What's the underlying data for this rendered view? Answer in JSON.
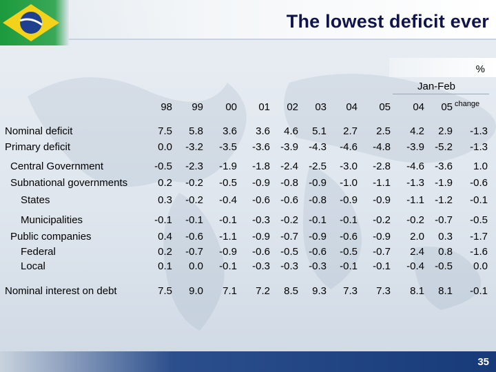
{
  "title": "The lowest deficit ever",
  "unit": "%",
  "period_label": "Jan-Feb",
  "columns": [
    "98",
    "99",
    "00",
    "01",
    "02",
    "03",
    "04",
    "05",
    "04",
    "05"
  ],
  "change_label": "change",
  "rows": [
    {
      "label": "Nominal deficit",
      "values": [
        "7.5",
        "5.8",
        "3.6",
        "3.6",
        "4.6",
        "5.1",
        "2.7",
        "2.5",
        "4.2",
        "2.9",
        "-1.3"
      ]
    },
    {
      "label": "Primary deficit",
      "values": [
        "0.0",
        "-3.2",
        "-3.5",
        "-3.6",
        "-3.9",
        "-4.3",
        "-4.6",
        "-4.8",
        "-3.9",
        "-5.2",
        "-1.3"
      ]
    },
    {
      "label": "Central Government",
      "values": [
        "-0.5",
        "-2.3",
        "-1.9",
        "-1.8",
        "-2.4",
        "-2.5",
        "-3.0",
        "-2.8",
        "-4.6",
        "-3.6",
        "1.0"
      ]
    },
    {
      "label": "Subnational governments",
      "values": [
        "0.2",
        "-0.2",
        "-0.5",
        "-0.9",
        "-0.8",
        "-0.9",
        "-1.0",
        "-1.1",
        "-1.3",
        "-1.9",
        "-0.6"
      ]
    },
    {
      "label": "States",
      "values": [
        "0.3",
        "-0.2",
        "-0.4",
        "-0.6",
        "-0.6",
        "-0.8",
        "-0.9",
        "-0.9",
        "-1.1",
        "-1.2",
        "-0.1"
      ]
    },
    {
      "label": "Municipalities",
      "values": [
        "-0.1",
        "-0.1",
        "-0.1",
        "-0.3",
        "-0.2",
        "-0.1",
        "-0.1",
        "-0.2",
        "-0.2",
        "-0.7",
        "-0.5"
      ]
    },
    {
      "label": "Public companies",
      "values": [
        "0.4",
        "-0.6",
        "-1.1",
        "-0.9",
        "-0.7",
        "-0.9",
        "-0.6",
        "-0.9",
        "2.0",
        "0.3",
        "-1.7"
      ]
    },
    {
      "label": "Federal",
      "values": [
        "0.2",
        "-0.7",
        "-0.9",
        "-0.6",
        "-0.5",
        "-0.6",
        "-0.5",
        "-0.7",
        "2.4",
        "0.8",
        "-1.6"
      ]
    },
    {
      "label": "Local",
      "values": [
        "0.1",
        "0.0",
        "-0.1",
        "-0.3",
        "-0.3",
        "-0.3",
        "-0.1",
        "-0.1",
        "-0.4",
        "-0.5",
        "0.0"
      ]
    },
    {
      "label": "Nominal interest on debt",
      "values": [
        "7.5",
        "9.0",
        "7.1",
        "7.2",
        "8.5",
        "9.3",
        "7.3",
        "7.3",
        "8.1",
        "8.1",
        "-0.1"
      ]
    }
  ],
  "page_number": "35",
  "colors": {
    "title": "#10144a",
    "flag_green": "#1c9a3c",
    "flag_yellow": "#f2d21a",
    "flag_blue": "#1f3f8f"
  }
}
